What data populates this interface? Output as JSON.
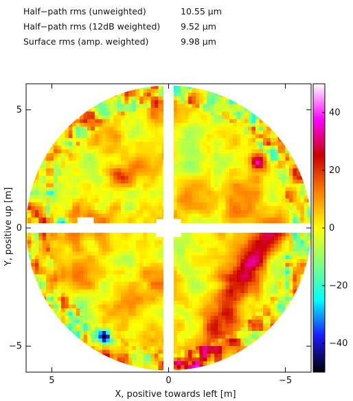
{
  "stats": [
    {
      "label": "Half−path rms (unweighted)",
      "value": "10.55 μm"
    },
    {
      "label": "Half−path rms (12dB weighted)",
      "value": "9.52 μm"
    },
    {
      "label": "Surface rms (amp. weighted)",
      "value": "9.98 μm"
    }
  ],
  "chart_data": {
    "type": "heatmap",
    "xlabel": "X, positive towards left [m]",
    "ylabel": "Y, positive up [m]",
    "x_ticks": [
      5,
      0,
      -5
    ],
    "y_ticks": [
      5,
      0,
      -5
    ],
    "x_tick_labels": [
      "5",
      "0",
      "−5"
    ],
    "y_tick_labels": [
      "5",
      "0",
      "−5"
    ],
    "xlim": [
      6.1,
      -6.1
    ],
    "ylim": [
      -6.1,
      6.1
    ],
    "colorbar": {
      "range": [
        -50,
        50
      ],
      "ticks": [
        40,
        20,
        0,
        -20,
        -40
      ],
      "tick_labels": [
        "40",
        "20",
        "0",
        "−20",
        "−40"
      ],
      "colors": [
        "#000000",
        "#1a1aff",
        "#00ffff",
        "#7fff7f",
        "#ffff00",
        "#ff8000",
        "#cc0000",
        "#ff00ff",
        "#ffffff"
      ]
    },
    "aperture_radius": 6.1,
    "masked_regions": [
      "horizontal strip along X axis",
      "vertical strip along Y axis"
    ],
    "unit": "μm"
  }
}
